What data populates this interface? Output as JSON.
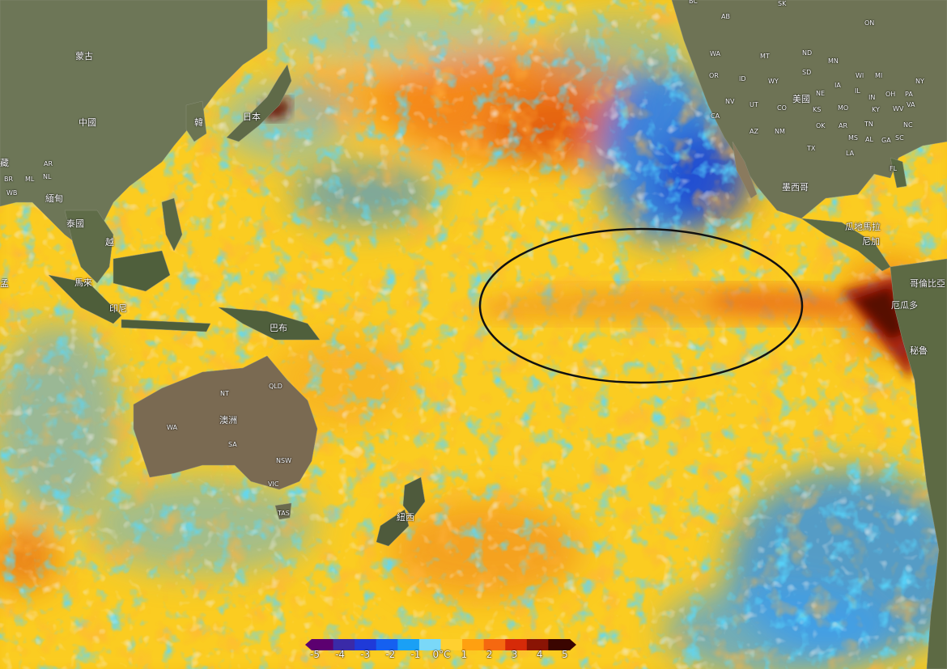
{
  "map": {
    "type": "sea-surface-temperature-anomaly",
    "highlight": "ellipse",
    "countries": [
      "蒙古",
      "中國",
      "韓",
      "日本",
      "緬甸",
      "泰國",
      "越",
      "馬來",
      "印尼",
      "巴布",
      "澳洲",
      "紐西",
      "美國",
      "墨西哥",
      "瓜地馬拉",
      "尼加",
      "哥倫比亞",
      "厄瓜多",
      "秘魯"
    ],
    "small_labels": [
      "BC",
      "SK",
      "ON",
      "AB",
      "WA",
      "MT",
      "ND",
      "MN",
      "OR",
      "ID",
      "WY",
      "SD",
      "IA",
      "WI",
      "MI",
      "NY",
      "NV",
      "UT",
      "CO",
      "NE",
      "KS",
      "IL",
      "IN",
      "OH",
      "PA",
      "CA",
      "AZ",
      "NM",
      "OK",
      "AR",
      "MO",
      "KY",
      "WV",
      "TN",
      "VA",
      "NC",
      "TX",
      "MS",
      "AL",
      "GA",
      "SC",
      "LA",
      "FL",
      "AR",
      "NL",
      "BR",
      "ML",
      "WB",
      "NT",
      "QLD",
      "WA",
      "SA",
      "NSW",
      "VIC",
      "TAS"
    ],
    "partial_labels": [
      "藏",
      "孟"
    ]
  },
  "legend": {
    "ticks": [
      "-5",
      "-4",
      "-3",
      "-2",
      "-1",
      "0°C",
      "1",
      "2",
      "3",
      "4",
      "5"
    ],
    "colors": [
      "#5c0070",
      "#3a2aa8",
      "#1f3ad8",
      "#1560f0",
      "#1aa0f5",
      "#7ad8f8",
      "#ffd030",
      "#ffa010",
      "#f56810",
      "#d62a08",
      "#8a1404",
      "#3a0500"
    ]
  }
}
